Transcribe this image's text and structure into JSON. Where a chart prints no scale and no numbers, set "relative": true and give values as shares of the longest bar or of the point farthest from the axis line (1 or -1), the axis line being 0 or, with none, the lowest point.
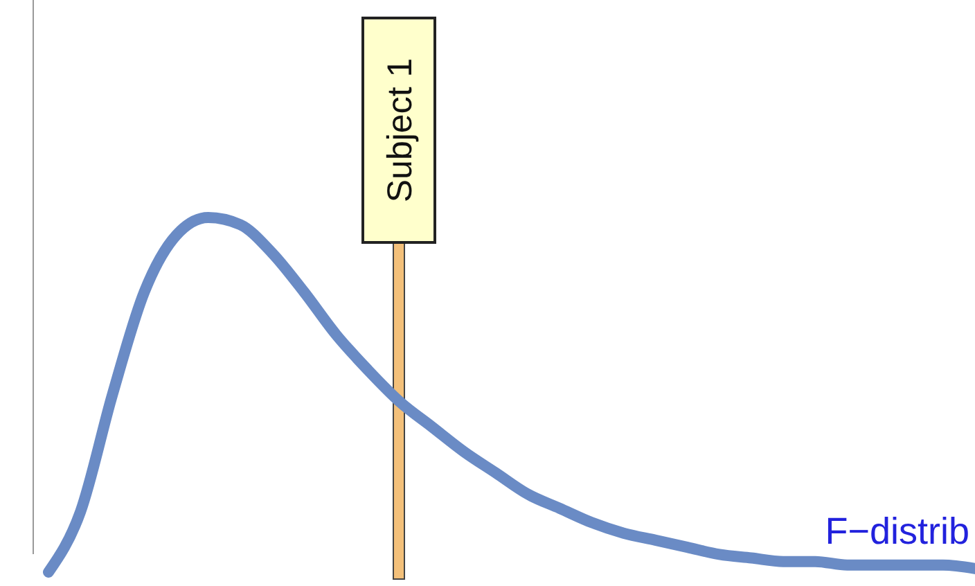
{
  "chart_data": {
    "type": "line",
    "relative": true,
    "categories": [
      null,
      null,
      null,
      null,
      null,
      null,
      null,
      null,
      null,
      null,
      null,
      null,
      null,
      null,
      null,
      null,
      null,
      null,
      null,
      null,
      null,
      null,
      null,
      null,
      null,
      null,
      null,
      null,
      null,
      null
    ],
    "series": [
      {
        "name": "F−distrib",
        "color": "#6a8bc5",
        "values": [
          0,
          0.17,
          0.5,
          0.79,
          0.95,
          1,
          0.98,
          0.9,
          0.79,
          0.67,
          0.57,
          0.48,
          0.41,
          0.34,
          0.28,
          0.22,
          0.18,
          0.14,
          0.11,
          0.09,
          0.07,
          0.05,
          0.04,
          0.03,
          0.03,
          0.02,
          0.02,
          0.02,
          0.02,
          0.01
        ]
      }
    ],
    "annotations": [
      "Subject 1"
    ],
    "line_style": "solid"
  }
}
